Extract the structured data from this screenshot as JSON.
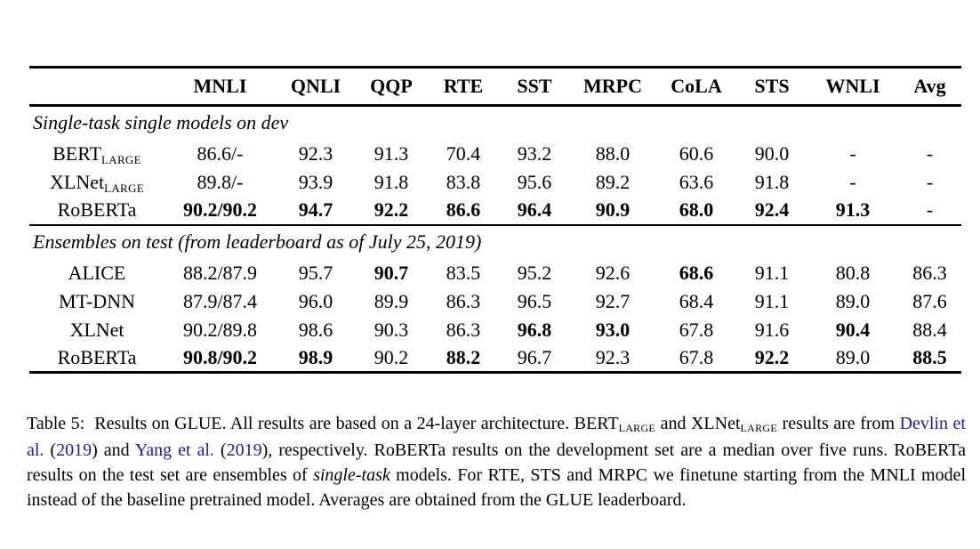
{
  "link_color": "#1b1ba6",
  "table": {
    "header": [
      "MNLI",
      "QNLI",
      "QQP",
      "RTE",
      "SST",
      "MRPC",
      "CoLA",
      "STS",
      "WNLI",
      "Avg"
    ],
    "sections": [
      {
        "heading": "Single-task single models on dev",
        "rows": [
          {
            "model": "BERT",
            "model_sub": "LARGE",
            "cells": [
              {
                "v": "86.6/-"
              },
              {
                "v": "92.3"
              },
              {
                "v": "91.3"
              },
              {
                "v": "70.4"
              },
              {
                "v": "93.2"
              },
              {
                "v": "88.0"
              },
              {
                "v": "60.6"
              },
              {
                "v": "90.0"
              },
              {
                "v": "-"
              },
              {
                "v": "-"
              }
            ]
          },
          {
            "model": "XLNet",
            "model_sub": "LARGE",
            "cells": [
              {
                "v": "89.8/-"
              },
              {
                "v": "93.9"
              },
              {
                "v": "91.8"
              },
              {
                "v": "83.8"
              },
              {
                "v": "95.6"
              },
              {
                "v": "89.2"
              },
              {
                "v": "63.6"
              },
              {
                "v": "91.8"
              },
              {
                "v": "-"
              },
              {
                "v": "-"
              }
            ]
          },
          {
            "model": "RoBERTa",
            "cells": [
              {
                "v": "90.2/90.2",
                "b": true
              },
              {
                "v": "94.7",
                "b": true
              },
              {
                "v": "92.2",
                "b": true
              },
              {
                "v": "86.6",
                "b": true
              },
              {
                "v": "96.4",
                "b": true
              },
              {
                "v": "90.9",
                "b": true
              },
              {
                "v": "68.0",
                "b": true
              },
              {
                "v": "92.4",
                "b": true
              },
              {
                "v": "91.3",
                "b": true
              },
              {
                "v": "-"
              }
            ]
          }
        ]
      },
      {
        "heading": "Ensembles on test (from leaderboard as of July 25, 2019)",
        "rows": [
          {
            "model": "ALICE",
            "cells": [
              {
                "v": "88.2/87.9"
              },
              {
                "v": "95.7"
              },
              {
                "v": "90.7",
                "b": true
              },
              {
                "v": "83.5"
              },
              {
                "v": "95.2"
              },
              {
                "v": "92.6"
              },
              {
                "v": "68.6",
                "b": true
              },
              {
                "v": "91.1"
              },
              {
                "v": "80.8"
              },
              {
                "v": "86.3"
              }
            ]
          },
          {
            "model": "MT-DNN",
            "cells": [
              {
                "v": "87.9/87.4"
              },
              {
                "v": "96.0"
              },
              {
                "v": "89.9"
              },
              {
                "v": "86.3"
              },
              {
                "v": "96.5"
              },
              {
                "v": "92.7"
              },
              {
                "v": "68.4"
              },
              {
                "v": "91.1"
              },
              {
                "v": "89.0"
              },
              {
                "v": "87.6"
              }
            ]
          },
          {
            "model": "XLNet",
            "cells": [
              {
                "v": "90.2/89.8"
              },
              {
                "v": "98.6"
              },
              {
                "v": "90.3"
              },
              {
                "v": "86.3"
              },
              {
                "v": "96.8",
                "b": true
              },
              {
                "v": "93.0",
                "b": true
              },
              {
                "v": "67.8"
              },
              {
                "v": "91.6"
              },
              {
                "v": "90.4",
                "b": true
              },
              {
                "v": "88.4"
              }
            ]
          },
          {
            "model": "RoBERTa",
            "cells": [
              {
                "v": "90.8/90.2",
                "b": true
              },
              {
                "v": "98.9",
                "b": true
              },
              {
                "v": "90.2"
              },
              {
                "v": "88.2",
                "b": true
              },
              {
                "v": "96.7"
              },
              {
                "v": "92.3"
              },
              {
                "v": "67.8"
              },
              {
                "v": "92.2",
                "b": true
              },
              {
                "v": "89.0"
              },
              {
                "v": "88.5",
                "b": true
              }
            ]
          }
        ]
      }
    ]
  },
  "caption": {
    "segments": [
      {
        "t": "Table 5:  Results on GLUE. All results are based on a 24-layer architecture. BERT"
      },
      {
        "t": "LARGE",
        "style": "sub"
      },
      {
        "t": " and XLNet"
      },
      {
        "t": "LARGE",
        "style": "sub"
      },
      {
        "t": " results are from "
      },
      {
        "t": "Devlin et al.",
        "style": "link"
      },
      {
        "t": " ("
      },
      {
        "t": "2019",
        "style": "link"
      },
      {
        "t": ") and "
      },
      {
        "t": "Yang et al.",
        "style": "link"
      },
      {
        "t": " ("
      },
      {
        "t": "2019",
        "style": "link"
      },
      {
        "t": "), respectively. RoBERTa results on the development set are a median over five runs. RoBERTa results on the test set are ensembles of "
      },
      {
        "t": "single-task",
        "style": "italic"
      },
      {
        "t": " models. For RTE, STS and MRPC we finetune starting from the MNLI model instead of the baseline pretrained model. Averages are obtained from the GLUE leaderboard."
      }
    ]
  }
}
